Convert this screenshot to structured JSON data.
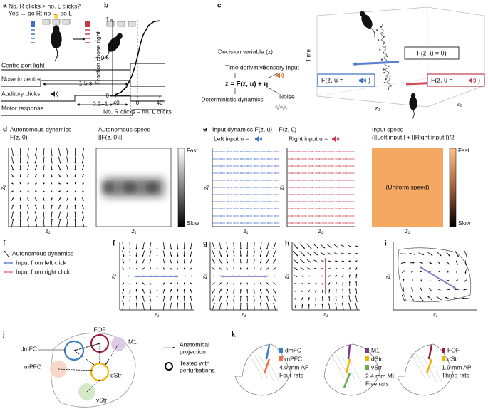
{
  "panels": {
    "a": {
      "label": "a",
      "question": "No. R clicks > no. L clicks?",
      "rule": "Yes → go R; no → go L",
      "rows": [
        "Centre port light",
        "Nose in centre",
        "Auditory clicks",
        "Motor response"
      ],
      "durations": [
        "1.5 s",
        "0.2–1 s"
      ]
    },
    "c": {
      "label": "c",
      "variable": "Decision variable (z)",
      "derivative": "Time derivative",
      "input": "Sensory input",
      "equation": "ż = F(z, u) + η",
      "deterministic": "Deterministic dynamics",
      "noise": "Noise",
      "time": "Time",
      "f_zero": "F(z, u = 0)",
      "f_input": [
        "F(z, u =",
        ")"
      ],
      "z1": "z₁",
      "z2": "z₂"
    },
    "d": {
      "label": "d",
      "field_title": [
        "Autonomous dynamics",
        "F(z, 0)"
      ],
      "speed_title": [
        "Autonomous speed",
        "||F(z, 0)||"
      ],
      "fast": "Fast",
      "slow": "Slow",
      "z1": "z₁",
      "z2": "z₂"
    },
    "e": {
      "label": "e",
      "title": "Input dynamics F(z, u) – F(z, 0)",
      "left": "Left input u =",
      "right": "Right input u =",
      "speed_title": [
        "Input speed",
        "(||Left input|| + ||Right input||)/2"
      ],
      "uniform": "(Uniform speed)",
      "fast": "Fast",
      "slow": "Slow",
      "z1": "z₁",
      "z2": "z₂"
    },
    "f": {
      "label": "f",
      "legend": [
        "Autonomous dynamics",
        "Input from left click",
        "Input from right click"
      ]
    },
    "g": {
      "label": "g"
    },
    "h": {
      "label": "h"
    },
    "i": {
      "label": "i"
    },
    "j": {
      "label": "j",
      "regions": [
        "dmFC",
        "FOF",
        "M1",
        "mPFC",
        "dStr",
        "vStr"
      ],
      "legend": [
        [
          "Anatomical",
          "projection"
        ],
        [
          "Tested with",
          "perturbations"
        ]
      ]
    },
    "k": {
      "label": "k",
      "sections": [
        {
          "regions": [
            "dmFC",
            "mPFC"
          ],
          "plane": "4.0 mm AP",
          "rats": "Four rats"
        },
        {
          "regions": [
            "M1",
            "dStr",
            "vStr"
          ],
          "plane": "2.4 mm ML",
          "rats": "Five rats"
        },
        {
          "regions": [
            "FOF",
            "dStr"
          ],
          "plane": "1.9 mm AP",
          "rats": "Three rats"
        }
      ]
    }
  },
  "chart_data": {
    "type": "line",
    "label": "b",
    "ylabel": "Fraction chose right",
    "xlabel": "No. R clicks – no. L clicks",
    "x": [
      -40,
      -30,
      -20,
      -10,
      -5,
      0,
      5,
      10,
      20,
      30,
      40
    ],
    "values": [
      0.02,
      0.05,
      0.12,
      0.27,
      0.38,
      0.52,
      0.68,
      0.8,
      0.93,
      0.98,
      0.99
    ],
    "color": "#000000",
    "xlim": [
      -45,
      45
    ],
    "ylim": [
      0,
      1
    ],
    "xticks": [
      -40,
      0,
      40
    ],
    "yticks": [
      0,
      0.5,
      1
    ]
  }
}
